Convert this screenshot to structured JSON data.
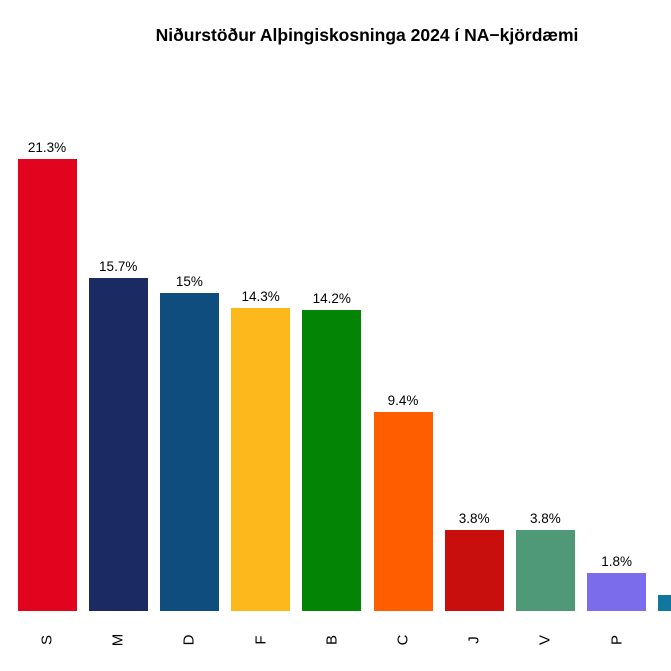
{
  "title": "Niðurstöður Alþingiskosninga 2024 í NA−kjördæmi",
  "chart_data": {
    "type": "bar",
    "title": "Niðurstöður Alþingiskosninga 2024 í NA−kjördæmi",
    "categories": [
      "S",
      "M",
      "D",
      "F",
      "B",
      "C",
      "J",
      "V",
      "P",
      ""
    ],
    "values": [
      21.3,
      15.7,
      15,
      14.3,
      14.2,
      9.4,
      3.8,
      3.8,
      1.8,
      0.75
    ],
    "value_labels": [
      "21.3%",
      "15.7%",
      "15%",
      "14.3%",
      "14.2%",
      "9.4%",
      "3.8%",
      "3.8%",
      "1.8%",
      ""
    ],
    "colors": [
      "#e2031f",
      "#1c2a63",
      "#0f4d7e",
      "#fdb81c",
      "#048404",
      "#fe5d00",
      "#c90e0e",
      "#4f9878",
      "#7a6ceb",
      "#10779f"
    ],
    "xlabel": "",
    "ylabel": "",
    "ylim": [
      0,
      22
    ],
    "grid": false,
    "legend": false,
    "axis_line": false,
    "category_label_rotation": -90,
    "last_bar_clipped_at_right_edge": true
  },
  "layout_hints": {
    "background": "#ffffff",
    "text_color": "#000000"
  }
}
